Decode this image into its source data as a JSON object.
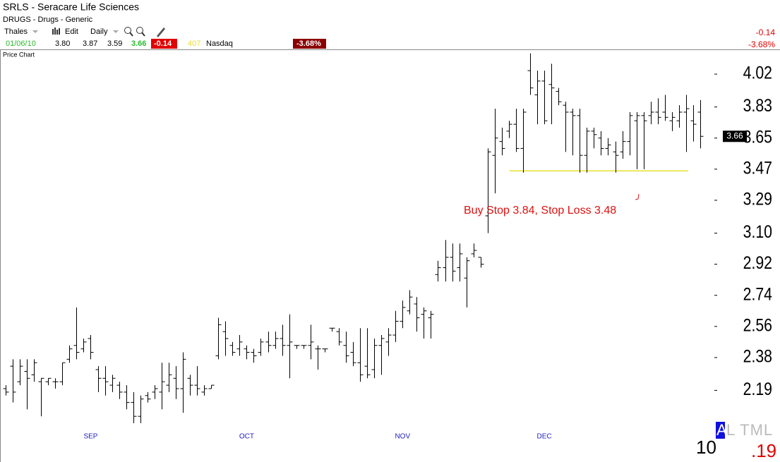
{
  "header": {
    "title": "SRLS - Seracare Life Sciences",
    "industry": "DRUGS - Drugs - Generic"
  },
  "toolbar": {
    "user": "Thales",
    "edit": "Edit",
    "period": "Daily"
  },
  "quote": {
    "date": "01/06/10",
    "open": "3.80",
    "high": "3.87",
    "low": "3.59",
    "close": "3.66",
    "change": "-0.14",
    "volume": "407",
    "exchange": "Nasdaq",
    "change_pct": "-3.68%"
  },
  "panel_label": "Price Chart",
  "footer": {
    "tab_active": "A",
    "tabs": "L TML",
    "left_value": "10",
    "right_value": ".19"
  },
  "chart_data": {
    "type": "ohlc",
    "color": "#000000",
    "categories": [
      null,
      null,
      null,
      null,
      null,
      null,
      null,
      null,
      null,
      null,
      null,
      null,
      "SEP",
      null,
      null,
      null,
      null,
      null,
      null,
      null,
      null,
      null,
      null,
      null,
      null,
      null,
      null,
      null,
      null,
      null,
      null,
      null,
      null,
      null,
      "OCT",
      null,
      null,
      null,
      null,
      null,
      null,
      null,
      null,
      null,
      null,
      null,
      null,
      null,
      null,
      null,
      null,
      null,
      null,
      null,
      null,
      null,
      "NOV",
      null,
      null,
      null,
      null,
      null,
      null,
      null,
      null,
      null,
      null,
      null,
      null,
      null,
      null,
      null,
      null,
      null,
      null,
      null,
      "DEC",
      null,
      null,
      null,
      null,
      null,
      null,
      null,
      null,
      null,
      null,
      null,
      null,
      null,
      null,
      null,
      null,
      null,
      null,
      null,
      null,
      null,
      null
    ],
    "open": [
      2.2,
      2.33,
      2.24,
      2.3,
      2.28,
      2.24,
      2.24,
      2.24,
      2.24,
      2.37,
      2.45,
      2.43,
      2.49,
      2.31,
      2.26,
      2.22,
      2.22,
      2.18,
      2.12,
      2.04,
      2.16,
      2.18,
      2.18,
      2.22,
      2.26,
      2.2,
      2.26,
      2.22,
      2.18,
      2.2,
      2.39,
      2.53,
      2.45,
      2.43,
      2.43,
      2.41,
      2.41,
      2.47,
      2.45,
      2.49,
      2.45,
      2.45,
      2.45,
      2.45,
      2.43,
      2.43,
      2.55,
      2.53,
      2.45,
      2.41,
      2.35,
      2.33,
      2.31,
      2.45,
      2.47,
      2.51,
      2.59,
      2.65,
      2.69,
      2.63,
      2.61,
      2.86,
      2.9,
      2.96,
      2.9,
      2.84,
      2.98,
      2.96,
      3.2,
      3.55,
      3.63,
      3.69,
      3.73,
      3.59,
      4.04,
      3.9,
      3.98,
      3.96,
      3.92,
      3.84,
      3.8,
      3.78,
      3.55,
      3.69,
      3.65,
      3.59,
      3.57,
      3.57,
      3.63,
      3.75,
      3.78,
      3.78,
      3.8,
      3.8,
      3.75,
      3.75,
      3.8,
      3.75,
      3.8
    ],
    "high": [
      2.22,
      2.37,
      2.37,
      2.37,
      2.37,
      2.26,
      2.26,
      2.26,
      2.35,
      2.45,
      2.67,
      2.49,
      2.51,
      2.33,
      2.33,
      2.28,
      2.24,
      2.22,
      2.18,
      2.16,
      2.18,
      2.22,
      2.35,
      2.35,
      2.33,
      2.41,
      2.28,
      2.33,
      2.22,
      2.22,
      2.61,
      2.59,
      2.47,
      2.51,
      2.45,
      2.43,
      2.49,
      2.53,
      2.53,
      2.57,
      2.63,
      2.45,
      2.45,
      2.57,
      2.45,
      2.43,
      2.55,
      2.55,
      2.53,
      2.47,
      2.55,
      2.55,
      2.49,
      2.51,
      2.55,
      2.65,
      2.71,
      2.77,
      2.73,
      2.67,
      2.65,
      2.94,
      3.06,
      3.04,
      3.04,
      2.96,
      3.04,
      2.96,
      3.59,
      3.82,
      3.71,
      3.75,
      3.82,
      3.82,
      4.14,
      4.04,
      4.04,
      4.08,
      3.94,
      3.86,
      3.82,
      3.82,
      3.71,
      3.71,
      3.69,
      3.65,
      3.63,
      3.69,
      3.8,
      3.8,
      3.8,
      3.86,
      3.88,
      3.9,
      3.8,
      3.84,
      3.9,
      3.84,
      3.87
    ],
    "low": [
      2.16,
      2.12,
      2.22,
      2.08,
      2.24,
      2.04,
      2.22,
      2.2,
      2.22,
      2.35,
      2.37,
      2.41,
      2.37,
      2.18,
      2.16,
      2.18,
      2.14,
      2.08,
      2.0,
      2.0,
      2.12,
      2.14,
      2.08,
      2.18,
      2.14,
      2.06,
      2.16,
      2.16,
      2.16,
      2.2,
      2.37,
      2.39,
      2.39,
      2.39,
      2.37,
      2.35,
      2.39,
      2.41,
      2.43,
      2.39,
      2.26,
      2.43,
      2.43,
      2.37,
      2.31,
      2.41,
      2.53,
      2.45,
      2.35,
      2.33,
      2.24,
      2.26,
      2.26,
      2.28,
      2.39,
      2.47,
      2.55,
      2.63,
      2.53,
      2.49,
      2.49,
      2.82,
      2.82,
      2.82,
      2.82,
      2.67,
      2.96,
      2.9,
      3.1,
      3.33,
      3.55,
      3.65,
      3.57,
      3.45,
      3.9,
      3.73,
      3.73,
      3.73,
      3.84,
      3.57,
      3.55,
      3.45,
      3.45,
      3.59,
      3.55,
      3.55,
      3.45,
      3.53,
      3.55,
      3.47,
      3.47,
      3.73,
      3.73,
      3.75,
      3.69,
      3.71,
      3.57,
      3.63,
      3.59
    ],
    "close": [
      2.18,
      2.18,
      2.33,
      2.26,
      2.35,
      2.26,
      2.26,
      2.24,
      2.35,
      2.43,
      2.41,
      2.47,
      2.41,
      2.26,
      2.24,
      2.26,
      2.18,
      2.12,
      2.04,
      2.14,
      2.14,
      2.2,
      2.24,
      2.28,
      2.2,
      2.37,
      2.22,
      2.2,
      2.2,
      2.22,
      2.57,
      2.49,
      2.41,
      2.47,
      2.41,
      2.39,
      2.47,
      2.45,
      2.49,
      2.45,
      2.47,
      2.45,
      2.45,
      2.47,
      2.43,
      2.43,
      2.55,
      2.47,
      2.39,
      2.35,
      2.28,
      2.28,
      2.45,
      2.49,
      2.51,
      2.59,
      2.67,
      2.73,
      2.61,
      2.65,
      2.63,
      2.9,
      2.96,
      2.88,
      2.98,
      2.94,
      3.0,
      2.92,
      3.57,
      3.65,
      3.59,
      3.73,
      3.59,
      3.8,
      3.94,
      3.98,
      3.75,
      3.94,
      3.86,
      3.8,
      3.78,
      3.55,
      3.69,
      3.67,
      3.59,
      3.61,
      3.55,
      3.63,
      3.78,
      3.78,
      3.75,
      3.8,
      3.77,
      3.77,
      3.77,
      3.8,
      3.82,
      3.73,
      3.66
    ],
    "ylim": [
      2.0,
      4.155
    ],
    "yticks": [
      2.19,
      2.38,
      2.56,
      2.74,
      2.92,
      {
        "value": 3.1,
        "label": "3.10"
      },
      3.29,
      3.47,
      3.65,
      3.83,
      4.02
    ],
    "hline": {
      "value": 3.46,
      "color": "#e6df2e"
    },
    "annotation": {
      "text": "Buy Stop 3.84, Stop Loss 3.48",
      "color": "#e01010"
    }
  }
}
